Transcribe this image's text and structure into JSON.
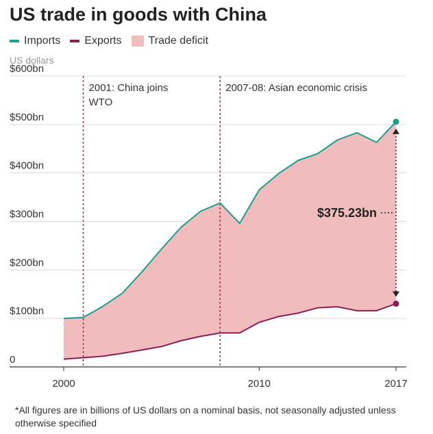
{
  "title": "US trade in goods with China",
  "units_label": "US dollars",
  "legend": [
    {
      "label": "Imports",
      "color": "#1a9e94",
      "kind": "line"
    },
    {
      "label": "Exports",
      "color": "#8c1d56",
      "kind": "line"
    },
    {
      "label": "Trade deficit",
      "color": "#f0bcbc",
      "kind": "area"
    }
  ],
  "footnote": "*All figures are in billions of US dollars on a nominal basis, not seasonally adjusted unless otherwise specified",
  "chart_data": {
    "type": "area",
    "title": "US trade in goods with China",
    "ylabel": "US dollars",
    "ylim": [
      0,
      600
    ],
    "yticks": [
      {
        "value": 0,
        "label": "0"
      },
      {
        "value": 100,
        "label": "$100bn"
      },
      {
        "value": 200,
        "label": "$200bn"
      },
      {
        "value": 300,
        "label": "$300bn"
      },
      {
        "value": 400,
        "label": "$400bn"
      },
      {
        "value": 500,
        "label": "$500bn"
      },
      {
        "value": 600,
        "label": "$600bn"
      }
    ],
    "xlim": [
      2000,
      2017
    ],
    "xticks": [
      {
        "value": 2000,
        "label": "2000"
      },
      {
        "value": 2010,
        "label": "2010"
      },
      {
        "value": 2017,
        "label": "2017"
      }
    ],
    "grid": true,
    "x": [
      2000,
      2001,
      2002,
      2003,
      2004,
      2005,
      2006,
      2007,
      2008,
      2009,
      2010,
      2011,
      2012,
      2013,
      2014,
      2015,
      2016,
      2017
    ],
    "series": [
      {
        "name": "Imports",
        "color": "#1a9e94",
        "values": [
          100,
          102,
          125,
          152,
          196,
          243,
          288,
          321,
          338,
          296,
          365,
          399,
          426,
          440,
          468,
          483,
          463,
          505.6
        ]
      },
      {
        "name": "Exports",
        "color": "#8c1d56",
        "values": [
          16,
          19,
          22,
          28,
          35,
          42,
          54,
          63,
          70,
          70,
          92,
          104,
          111,
          122,
          124,
          116,
          116,
          130.4
        ]
      }
    ],
    "area": {
      "name": "Trade deficit",
      "color": "#f0bcbc"
    },
    "annotations": [
      {
        "x": 2001,
        "text": [
          "2001: China joins",
          "WTO"
        ]
      },
      {
        "x": 2008,
        "text": [
          "2007-08: Asian economic crisis"
        ]
      }
    ],
    "deficit_callout": {
      "x": 2017,
      "label": "$375.23bn"
    }
  }
}
